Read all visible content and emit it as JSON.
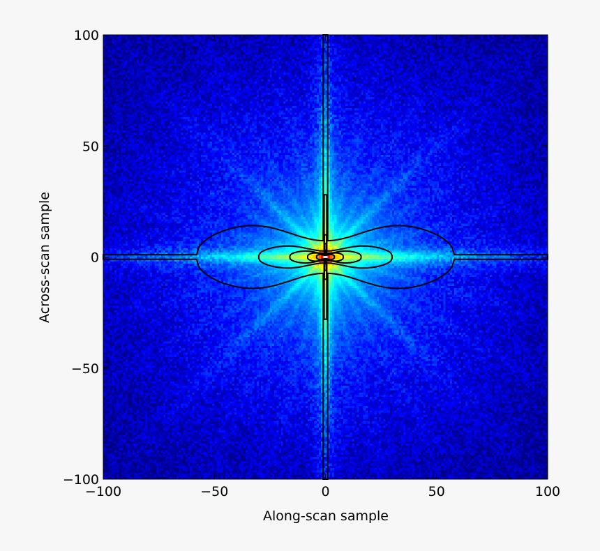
{
  "chart_data": {
    "type": "heatmap",
    "xlabel": "Along-scan sample",
    "ylabel": "Across-scan sample",
    "xlim": [
      -100,
      100
    ],
    "ylim": [
      -100,
      100
    ],
    "x_ticks": [
      -100,
      -50,
      0,
      50,
      100
    ],
    "y_ticks": [
      -100,
      -50,
      0,
      50,
      100
    ],
    "x_tick_labels": [
      "−100",
      "−50",
      "0",
      "50",
      "100"
    ],
    "y_tick_labels": [
      "−100",
      "−50",
      "0",
      "50",
      "100"
    ],
    "grid": false,
    "colormap": "jet",
    "saturated_color": "#ffffff",
    "contour_color": "#000000",
    "description_values": {
      "peak_center": [
        0,
        0
      ],
      "cross_arms_along_x": true,
      "cross_arms_along_y": true
    },
    "contours": [
      {
        "level": 1,
        "half_width_x": 100,
        "half_width_y": 100,
        "arm_width": 1.0,
        "lobe": [
          58,
          18
        ]
      },
      {
        "level": 2,
        "half_width_x": 30,
        "half_width_y": 28,
        "arm_width": 0.6,
        "lobe": [
          30,
          6
        ]
      },
      {
        "level": 3,
        "half_width_x": 16,
        "half_width_y": 10,
        "arm_width": 0.5,
        "lobe": [
          16,
          3
        ]
      },
      {
        "level": 4,
        "half_width_x": 8,
        "half_width_y": 6,
        "arm_width": 0.4,
        "lobe": [
          8,
          2
        ]
      },
      {
        "level": 5,
        "half_width_x": 4,
        "half_width_y": 3,
        "arm_width": 0.3,
        "lobe": [
          4,
          1.2
        ]
      }
    ]
  }
}
